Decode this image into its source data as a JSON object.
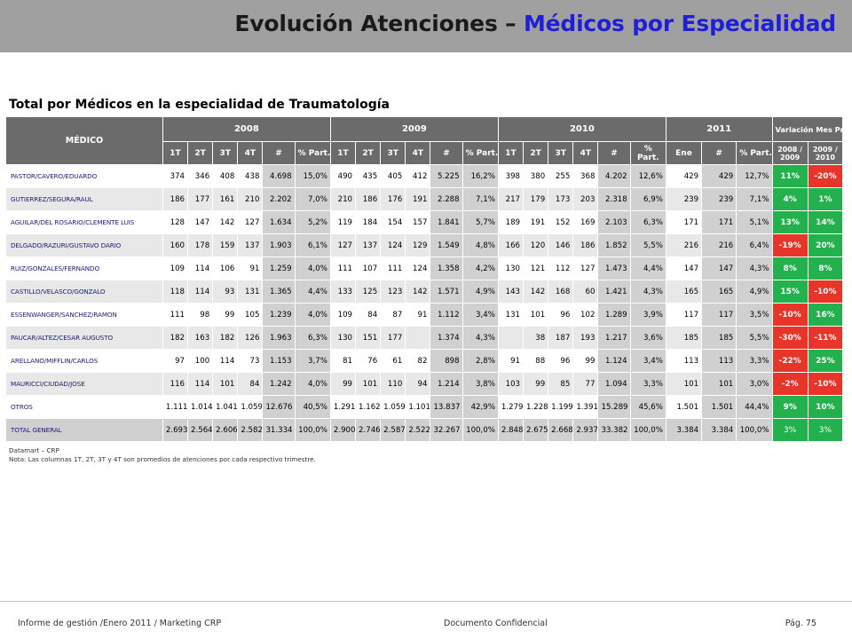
{
  "header": {
    "title_main": "Evolución Atenciones – ",
    "title_accent": "Médicos por Especialidad"
  },
  "subtitle": "Total por Médicos en la especialidad de Traumatología",
  "table": {
    "medico_label": "MÉDICO",
    "years": [
      "2008",
      "2009",
      "2010",
      "2011"
    ],
    "variation_label": "Variación Mes Prom.",
    "col_labels": {
      "q1": "1T",
      "q2": "2T",
      "q3": "3T",
      "q4": "4T",
      "num": "#",
      "part": "% Part.",
      "part_wrapped": "%\nPart.",
      "ene": "Ene",
      "var1": "2008 / 2009",
      "var2": "2009 / 2010"
    },
    "rows": [
      {
        "name": "PASTOR/CAVERO/EDUARDO",
        "y2008": [
          "374",
          "346",
          "408",
          "438",
          "4.698",
          "15,0%"
        ],
        "y2009": [
          "490",
          "435",
          "405",
          "412",
          "5.225",
          "16,2%"
        ],
        "y2010": [
          "398",
          "380",
          "255",
          "368",
          "4.202",
          "12,6%"
        ],
        "y2011": [
          "429",
          "429",
          "12,7%"
        ],
        "var": [
          "11%",
          "-20%"
        ],
        "var_sign": [
          "pos",
          "neg"
        ]
      },
      {
        "name": "GUTIERREZ/SEGURA/RAUL",
        "y2008": [
          "186",
          "177",
          "161",
          "210",
          "2.202",
          "7,0%"
        ],
        "y2009": [
          "210",
          "186",
          "176",
          "191",
          "2.288",
          "7,1%"
        ],
        "y2010": [
          "217",
          "179",
          "173",
          "203",
          "2.318",
          "6,9%"
        ],
        "y2011": [
          "239",
          "239",
          "7,1%"
        ],
        "var": [
          "4%",
          "1%"
        ],
        "var_sign": [
          "pos",
          "pos"
        ]
      },
      {
        "name": "AGUILAR/DEL ROSARIO/CLEMENTE LUIS",
        "y2008": [
          "128",
          "147",
          "142",
          "127",
          "1.634",
          "5,2%"
        ],
        "y2009": [
          "119",
          "184",
          "154",
          "157",
          "1.841",
          "5,7%"
        ],
        "y2010": [
          "189",
          "191",
          "152",
          "169",
          "2.103",
          "6,3%"
        ],
        "y2011": [
          "171",
          "171",
          "5,1%"
        ],
        "var": [
          "13%",
          "14%"
        ],
        "var_sign": [
          "pos",
          "pos"
        ]
      },
      {
        "name": "DELGADO/RAZURI/GUSTAVO DARIO",
        "y2008": [
          "160",
          "178",
          "159",
          "137",
          "1.903",
          "6,1%"
        ],
        "y2009": [
          "127",
          "137",
          "124",
          "129",
          "1.549",
          "4,8%"
        ],
        "y2010": [
          "166",
          "120",
          "146",
          "186",
          "1.852",
          "5,5%"
        ],
        "y2011": [
          "216",
          "216",
          "6,4%"
        ],
        "var": [
          "-19%",
          "20%"
        ],
        "var_sign": [
          "neg",
          "pos"
        ]
      },
      {
        "name": "RUIZ/GONZALES/FERNANDO",
        "y2008": [
          "109",
          "114",
          "106",
          "91",
          "1.259",
          "4,0%"
        ],
        "y2009": [
          "111",
          "107",
          "111",
          "124",
          "1.358",
          "4,2%"
        ],
        "y2010": [
          "130",
          "121",
          "112",
          "127",
          "1.473",
          "4,4%"
        ],
        "y2011": [
          "147",
          "147",
          "4,3%"
        ],
        "var": [
          "8%",
          "8%"
        ],
        "var_sign": [
          "pos",
          "pos"
        ]
      },
      {
        "name": "CASTILLO/VELASCO/GONZALO",
        "y2008": [
          "118",
          "114",
          "93",
          "131",
          "1.365",
          "4,4%"
        ],
        "y2009": [
          "133",
          "125",
          "123",
          "142",
          "1.571",
          "4,9%"
        ],
        "y2010": [
          "143",
          "142",
          "168",
          "60",
          "1.421",
          "4,3%"
        ],
        "y2011": [
          "165",
          "165",
          "4,9%"
        ],
        "var": [
          "15%",
          "-10%"
        ],
        "var_sign": [
          "pos",
          "neg"
        ]
      },
      {
        "name": "ESSENWANGER/SANCHEZ/RAMON",
        "y2008": [
          "111",
          "98",
          "99",
          "105",
          "1.239",
          "4,0%"
        ],
        "y2009": [
          "109",
          "84",
          "87",
          "91",
          "1.112",
          "3,4%"
        ],
        "y2010": [
          "131",
          "101",
          "96",
          "102",
          "1.289",
          "3,9%"
        ],
        "y2011": [
          "117",
          "117",
          "3,5%"
        ],
        "var": [
          "-10%",
          "16%"
        ],
        "var_sign": [
          "neg",
          "pos"
        ]
      },
      {
        "name": "PAUCAR/ALTEZ/CESAR AUGUSTO",
        "y2008": [
          "182",
          "163",
          "182",
          "126",
          "1.963",
          "6,3%"
        ],
        "y2009": [
          "130",
          "151",
          "177",
          "",
          "1.374",
          "4,3%"
        ],
        "y2010": [
          "",
          "38",
          "187",
          "193",
          "1.217",
          "3,6%"
        ],
        "y2011": [
          "185",
          "185",
          "5,5%"
        ],
        "var": [
          "-30%",
          "-11%"
        ],
        "var_sign": [
          "neg",
          "neg"
        ]
      },
      {
        "name": "ARELLANO/MIFFLIN/CARLOS",
        "y2008": [
          "97",
          "100",
          "114",
          "73",
          "1.153",
          "3,7%"
        ],
        "y2009": [
          "81",
          "76",
          "61",
          "82",
          "898",
          "2,8%"
        ],
        "y2010": [
          "91",
          "88",
          "96",
          "99",
          "1.124",
          "3,4%"
        ],
        "y2011": [
          "113",
          "113",
          "3,3%"
        ],
        "var": [
          "-22%",
          "25%"
        ],
        "var_sign": [
          "neg",
          "pos"
        ]
      },
      {
        "name": "MAURICCI/CIUDAD/JOSE",
        "y2008": [
          "116",
          "114",
          "101",
          "84",
          "1.242",
          "4,0%"
        ],
        "y2009": [
          "99",
          "101",
          "110",
          "94",
          "1.214",
          "3,8%"
        ],
        "y2010": [
          "103",
          "99",
          "85",
          "77",
          "1.094",
          "3,3%"
        ],
        "y2011": [
          "101",
          "101",
          "3,0%"
        ],
        "var": [
          "-2%",
          "-10%"
        ],
        "var_sign": [
          "neg",
          "neg"
        ]
      },
      {
        "name": "OTROS",
        "y2008": [
          "1.111",
          "1.014",
          "1.041",
          "1.059",
          "12.676",
          "40,5%"
        ],
        "y2009": [
          "1.291",
          "1.162",
          "1.059",
          "1.101",
          "13.837",
          "42,9%"
        ],
        "y2010": [
          "1.279",
          "1.228",
          "1.199",
          "1.391",
          "15.289",
          "45,6%"
        ],
        "y2011": [
          "1.501",
          "1.501",
          "44,4%"
        ],
        "var": [
          "9%",
          "10%"
        ],
        "var_sign": [
          "pos",
          "pos"
        ]
      },
      {
        "name": "TOTAL GENERAL",
        "y2008": [
          "2.693",
          "2.564",
          "2.606",
          "2.582",
          "31.334",
          "100,0%"
        ],
        "y2009": [
          "2.900",
          "2.746",
          "2.587",
          "2.522",
          "32.267",
          "100,0%"
        ],
        "y2010": [
          "2.848",
          "2.675",
          "2.668",
          "2.937",
          "33.382",
          "100,0%"
        ],
        "y2011": [
          "3.384",
          "3.384",
          "100,0%"
        ],
        "var": [
          "3%",
          "3%"
        ],
        "var_sign": [
          "pos",
          "pos"
        ]
      }
    ]
  },
  "notes": {
    "source": "Datamart – CRP",
    "note": "Nota: Las columnas 1T, 2T,  3T y 4T  son promedios de atenciones por cada respectivo trimestre."
  },
  "footer": {
    "left": "Informe de gestión /Enero 2011 / Marketing CRP",
    "center": "Documento Confidencial",
    "right": "Pág. 75"
  },
  "colors": {
    "header_bg": "#6b6b6b",
    "title_accent": "#1f1fd6",
    "positive": "#22b14c",
    "negative": "#e8352a"
  }
}
